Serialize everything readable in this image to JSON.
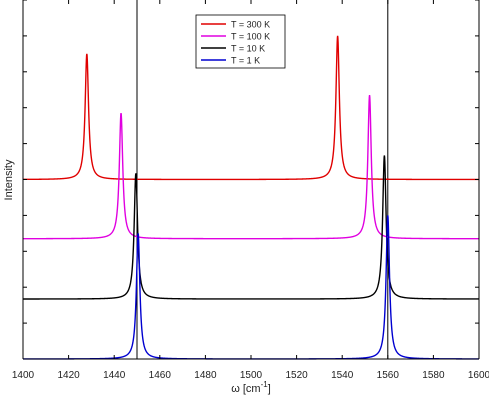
{
  "chart_data": {
    "type": "line",
    "title": "",
    "xlabel": "ω [cm",
    "xlabel_sup": "-1",
    "xlabel_close": "]",
    "ylabel": "Intensity",
    "xlim": [
      1400,
      1600
    ],
    "ylim": [
      0,
      1.0
    ],
    "x_ticks": [
      "1400",
      "1420",
      "1440",
      "1460",
      "1480",
      "1500",
      "1520",
      "1540",
      "1560",
      "1580",
      "1600"
    ],
    "y_tick_labels_shown": false,
    "grid": false,
    "legend_position": "top-center",
    "reference_lines_x": [
      1450,
      1560
    ],
    "series": [
      {
        "name": "T = 300 K",
        "color": "#e00000",
        "baseline": 0.5,
        "peaks": [
          {
            "x": 1428,
            "height": 0.35
          },
          {
            "x": 1538,
            "height": 0.4
          }
        ]
      },
      {
        "name": "T = 100 K",
        "color": "#e000e0",
        "baseline": 0.335,
        "peaks": [
          {
            "x": 1443,
            "height": 0.35
          },
          {
            "x": 1552,
            "height": 0.4
          }
        ]
      },
      {
        "name": "T = 10 K",
        "color": "#000000",
        "baseline": 0.167,
        "peaks": [
          {
            "x": 1449.5,
            "height": 0.35
          },
          {
            "x": 1558.5,
            "height": 0.4
          }
        ]
      },
      {
        "name": "T = 1 K",
        "color": "#0000d0",
        "baseline": 0.0,
        "peaks": [
          {
            "x": 1450.5,
            "height": 0.35
          },
          {
            "x": 1560,
            "height": 0.4
          }
        ]
      }
    ]
  }
}
